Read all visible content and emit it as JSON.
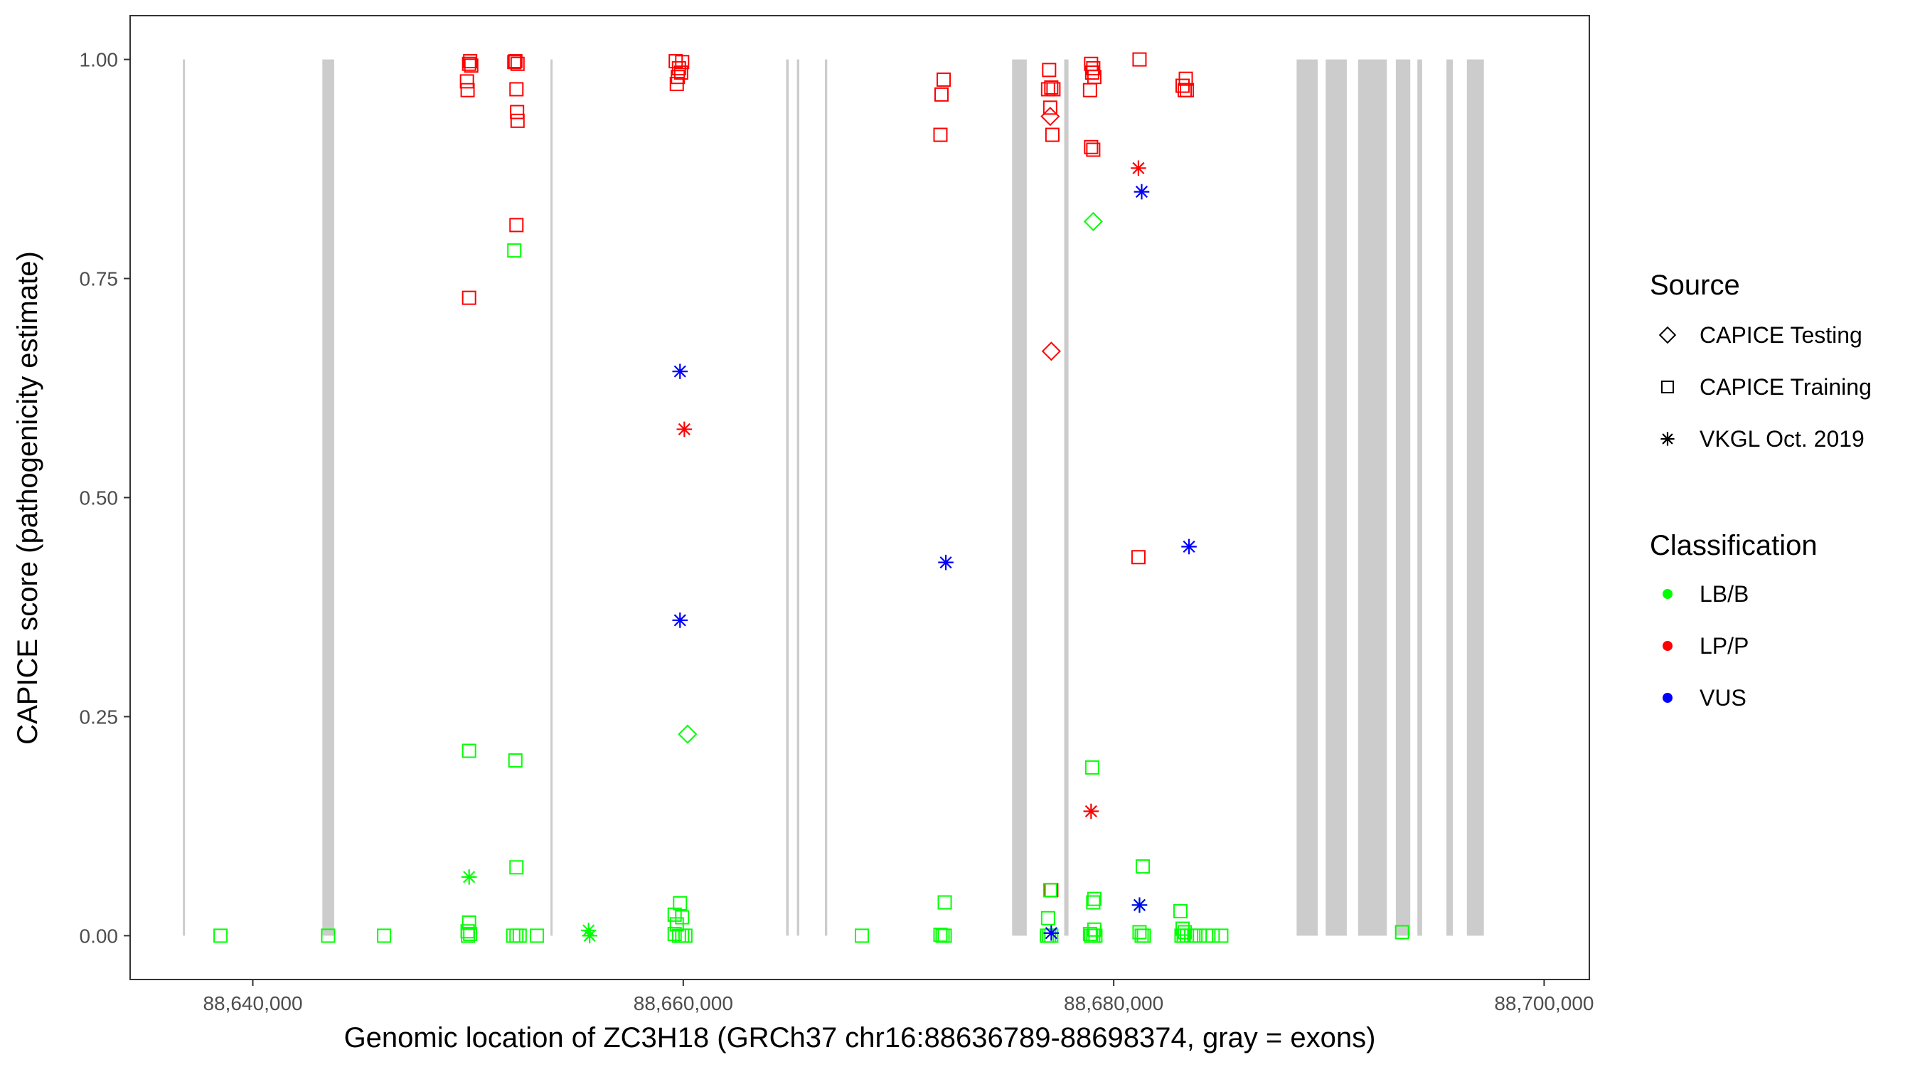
{
  "chart_data": {
    "type": "scatter",
    "title": "",
    "xlabel": "Genomic location of ZC3H18 (GRCh37 chr16:88636789-88698374, gray = exons)",
    "ylabel": "CAPICE score (pathogenicity estimate)",
    "xlim": [
      88634300,
      88702100
    ],
    "ylim": [
      -0.05,
      1.05
    ],
    "x_ticks": [
      88640000,
      88660000,
      88680000,
      88700000
    ],
    "x_tick_labels": [
      "88,640,000",
      "88,660,000",
      "88,680,000",
      "88,700,000"
    ],
    "y_ticks": [
      0,
      0.25,
      0.5,
      0.75,
      1.0
    ],
    "y_tick_labels": [
      "0.00",
      "0.25",
      "0.50",
      "0.75",
      "1.00"
    ],
    "grid": false,
    "exons": [
      [
        88636750,
        88636850
      ],
      [
        88643230,
        88643780
      ],
      [
        88653830,
        88653900
      ],
      [
        88664780,
        88664900
      ],
      [
        88665280,
        88665390
      ],
      [
        88666580,
        88666690
      ],
      [
        88675280,
        88675960
      ],
      [
        88677700,
        88677900
      ],
      [
        88688500,
        88689480
      ],
      [
        88689850,
        88690830
      ],
      [
        88691360,
        88692690
      ],
      [
        88693110,
        88693780
      ],
      [
        88694110,
        88694330
      ],
      [
        88695460,
        88695760
      ],
      [
        88696410,
        88697200
      ]
    ],
    "legends": [
      {
        "title": "Source",
        "position": "right",
        "items": [
          {
            "label": "CAPICE Testing",
            "shape": "diamond"
          },
          {
            "label": "CAPICE Training",
            "shape": "square"
          },
          {
            "label": "VKGL Oct. 2019",
            "shape": "asterisk"
          }
        ]
      },
      {
        "title": "Classification",
        "position": "right",
        "items": [
          {
            "label": "LB/B",
            "color": "#00ff00"
          },
          {
            "label": "LP/P",
            "color": "#ff0000"
          },
          {
            "label": "VUS",
            "color": "#0000ff"
          }
        ]
      }
    ],
    "colors": {
      "LB/B": "#00ff00",
      "LP/P": "#ff0000",
      "VUS": "#0000ff",
      "exon": "#cccccc"
    },
    "series": [
      {
        "name": "CAPICE Training",
        "classification": "LP/P",
        "shape": "square",
        "points": [
          [
            88650050,
            0.995
          ],
          [
            88650100,
            0.998
          ],
          [
            88650150,
            0.993
          ],
          [
            88649950,
            0.975
          ],
          [
            88649980,
            0.965
          ],
          [
            88650050,
            0.728
          ],
          [
            88652200,
            0.998
          ],
          [
            88652300,
            0.995
          ],
          [
            88652150,
            0.997
          ],
          [
            88652250,
            0.966
          ],
          [
            88652280,
            0.94
          ],
          [
            88652300,
            0.93
          ],
          [
            88652250,
            0.811
          ],
          [
            88659650,
            0.998
          ],
          [
            88659950,
            0.997
          ],
          [
            88659800,
            0.99
          ],
          [
            88659900,
            0.985
          ],
          [
            88659750,
            0.98
          ],
          [
            88659700,
            0.972
          ],
          [
            88672100,
            0.977
          ],
          [
            88672000,
            0.96
          ],
          [
            88671950,
            0.914
          ],
          [
            88677000,
            0.988
          ],
          [
            88677100,
            0.968
          ],
          [
            88676950,
            0.966
          ],
          [
            88677200,
            0.966
          ],
          [
            88677050,
            0.945
          ],
          [
            88677150,
            0.914
          ],
          [
            88678950,
            0.995
          ],
          [
            88679050,
            0.99
          ],
          [
            88679000,
            0.985
          ],
          [
            88679100,
            0.98
          ],
          [
            88678900,
            0.965
          ],
          [
            88678950,
            0.9
          ],
          [
            88679050,
            0.897
          ],
          [
            88681200,
            1.0
          ],
          [
            88681150,
            0.432
          ],
          [
            88683350,
            0.978
          ],
          [
            88683200,
            0.97
          ],
          [
            88683300,
            0.965
          ],
          [
            88683400,
            0.965
          ],
          [
            88677100,
            0.052
          ]
        ]
      },
      {
        "name": "CAPICE Training",
        "classification": "LB/B",
        "shape": "square",
        "points": [
          [
            88638500,
            0.0
          ],
          [
            88643500,
            0.0
          ],
          [
            88646100,
            0.0
          ],
          [
            88650050,
            0.211
          ],
          [
            88650050,
            0.015
          ],
          [
            88649980,
            0.005
          ],
          [
            88650100,
            0.002
          ],
          [
            88650000,
            0.0
          ],
          [
            88652150,
            0.782
          ],
          [
            88652200,
            0.2
          ],
          [
            88652250,
            0.078
          ],
          [
            88652100,
            0.0
          ],
          [
            88652250,
            0.0
          ],
          [
            88652400,
            0.0
          ],
          [
            88653200,
            0.0
          ],
          [
            88659600,
            0.024
          ],
          [
            88659700,
            0.013
          ],
          [
            88659850,
            0.037
          ],
          [
            88659950,
            0.021
          ],
          [
            88659600,
            0.002
          ],
          [
            88659800,
            0.0
          ],
          [
            88659950,
            0.0
          ],
          [
            88660100,
            0.0
          ],
          [
            88668300,
            0.0
          ],
          [
            88672150,
            0.038
          ],
          [
            88671950,
            0.001
          ],
          [
            88672050,
            0.0
          ],
          [
            88672150,
            0.0
          ],
          [
            88676950,
            0.02
          ],
          [
            88677050,
            0.052
          ],
          [
            88676900,
            0.0
          ],
          [
            88677000,
            0.0
          ],
          [
            88677100,
            0.0
          ],
          [
            88679000,
            0.192
          ],
          [
            88679100,
            0.042
          ],
          [
            88679050,
            0.038
          ],
          [
            88679100,
            0.007
          ],
          [
            88678950,
            0.0
          ],
          [
            88679050,
            0.0
          ],
          [
            88679150,
            0.0
          ],
          [
            88678900,
            0.002
          ],
          [
            88681350,
            0.079
          ],
          [
            88681200,
            0.004
          ],
          [
            88681300,
            0.0
          ],
          [
            88681400,
            0.0
          ],
          [
            88683100,
            0.028
          ],
          [
            88683200,
            0.008
          ],
          [
            88683300,
            0.004
          ],
          [
            88683150,
            0.0
          ],
          [
            88683250,
            0.0
          ],
          [
            88683400,
            0.0
          ],
          [
            88683600,
            0.0
          ],
          [
            88683800,
            0.0
          ],
          [
            88684000,
            0.0
          ],
          [
            88684300,
            0.0
          ],
          [
            88684600,
            0.0
          ],
          [
            88685000,
            0.0
          ],
          [
            88693400,
            0.004
          ]
        ]
      },
      {
        "name": "CAPICE Testing",
        "classification": "LP/P",
        "shape": "diamond",
        "points": [
          [
            88677050,
            0.935
          ],
          [
            88677100,
            0.667
          ]
        ]
      },
      {
        "name": "CAPICE Testing",
        "classification": "LB/B",
        "shape": "diamond",
        "points": [
          [
            88660200,
            0.23
          ],
          [
            88679050,
            0.815
          ]
        ]
      },
      {
        "name": "VKGL Oct. 2019",
        "classification": "LP/P",
        "shape": "asterisk",
        "points": [
          [
            88660050,
            0.578
          ],
          [
            88678950,
            0.142
          ],
          [
            88681150,
            0.876
          ]
        ]
      },
      {
        "name": "VKGL Oct. 2019",
        "classification": "LB/B",
        "shape": "asterisk",
        "points": [
          [
            88650050,
            0.067
          ],
          [
            88655600,
            0.006
          ],
          [
            88655650,
            0.0
          ],
          [
            88681200,
            0.035
          ]
        ]
      },
      {
        "name": "VKGL Oct. 2019",
        "classification": "VUS",
        "shape": "asterisk",
        "points": [
          [
            88659850,
            0.644
          ],
          [
            88659850,
            0.36
          ],
          [
            88672200,
            0.426
          ],
          [
            88677100,
            0.003
          ],
          [
            88681300,
            0.849
          ],
          [
            88683500,
            0.444
          ],
          [
            88681200,
            0.035
          ]
        ]
      }
    ]
  }
}
